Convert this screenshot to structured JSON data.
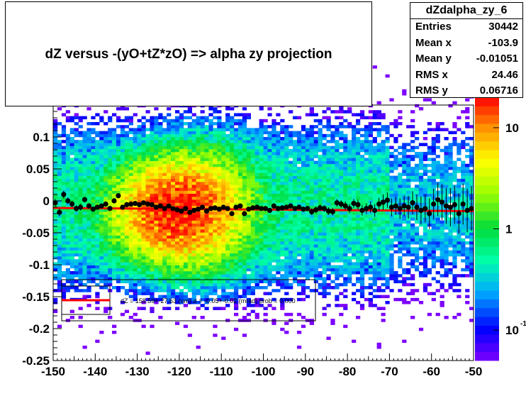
{
  "title": "dZ  versus -(yO+tZ*zO) =>  alpha zy projection",
  "stats": {
    "name": "dZdalpha_zy_6",
    "rows": [
      {
        "label": "Entries",
        "value": "30442"
      },
      {
        "label": "Mean x",
        "value": "-103.9"
      },
      {
        "label": "Mean y",
        "value": "-0.01051"
      },
      {
        "label": "RMS x",
        "value": "24.46"
      },
      {
        "label": "RMS y",
        "value": "0.06716"
      }
    ]
  },
  "palette_labels": [
    {
      "text": "10",
      "exp": ""
    },
    {
      "text": "1",
      "exp": ""
    },
    {
      "text": "10",
      "exp": "-1"
    }
  ],
  "legend_text": "dZ = 158.59+-27.63 (um) α = -0.05+-0.02 (mrad) prob = 0.000",
  "chart_data": {
    "type": "heatmap",
    "title": "dZ  versus -(yO+tZ*zO) =>  alpha zy projection",
    "xlabel": "",
    "ylabel": "",
    "xlim": [
      -150,
      -50
    ],
    "ylim": [
      -0.25,
      0.15
    ],
    "xticks": [
      -150,
      -140,
      -130,
      -120,
      -110,
      -100,
      -90,
      -80,
      -70,
      -60,
      -50
    ],
    "yticks": [
      -0.25,
      -0.2,
      -0.15,
      -0.1,
      -0.05,
      0,
      0.05,
      0.1
    ],
    "ytick_labels": [
      "-0.25",
      "-0.2",
      "-0.15",
      "-0.1",
      "-0.05",
      "0",
      "0.05",
      "0.1"
    ],
    "color_scale": "log",
    "z_range": [
      0.05,
      20
    ],
    "density_peak": {
      "x": -121,
      "y": -0.015
    },
    "profile": {
      "x": [
        -149.5,
        -148.5,
        -147.5,
        -146.5,
        -145.5,
        -144.5,
        -143.5,
        -142.5,
        -141.5,
        -140.5,
        -139.5,
        -138.5,
        -137.5,
        -136.5,
        -135.5,
        -134.5,
        -133.5,
        -132.5,
        -131.5,
        -130.5,
        -129.5,
        -128.5,
        -127.5,
        -126.5,
        -125.5,
        -124.5,
        -123.5,
        -122.5,
        -121.5,
        -120.5,
        -119.5,
        -118.5,
        -117.5,
        -116.5,
        -115.5,
        -114.5,
        -113.5,
        -112.5,
        -111.5,
        -110.5,
        -109.5,
        -108.5,
        -107.5,
        -106.5,
        -105.5,
        -104.5,
        -103.5,
        -102.5,
        -101.5,
        -100.5,
        -99.5,
        -98.5,
        -97.5,
        -96.5,
        -95.5,
        -94.5,
        -93.5,
        -92.5,
        -91.5,
        -90.5,
        -89.5,
        -88.5,
        -87.5,
        -86.5,
        -85.5,
        -84.5,
        -83.5,
        -82.5,
        -81.5,
        -80.5,
        -79.5,
        -78.5,
        -77.5,
        -76.5,
        -75.5,
        -74.5,
        -73.5,
        -72.5,
        -71.5,
        -70.5,
        -69.5,
        -68.5,
        -67.5,
        -66.5,
        -65.5,
        -64.5,
        -63.5,
        -62.5,
        -61.5,
        -60.5,
        -59.5,
        -58.5,
        -57.5,
        -56.5,
        -55.5,
        -54.5,
        -53.5,
        -52.5,
        -51.5,
        -50.5
      ],
      "y": [
        -0.003,
        -0.018,
        0.01,
        0.0,
        -0.005,
        -0.012,
        -0.01,
        0.002,
        -0.008,
        -0.013,
        -0.01,
        -0.008,
        -0.005,
        -0.012,
        0.0,
        0.008,
        -0.01,
        -0.006,
        -0.005,
        -0.004,
        -0.006,
        -0.003,
        -0.005,
        -0.006,
        -0.01,
        -0.008,
        -0.012,
        -0.008,
        -0.012,
        -0.014,
        -0.016,
        -0.012,
        -0.018,
        -0.015,
        -0.013,
        -0.01,
        -0.016,
        -0.012,
        -0.011,
        -0.013,
        -0.01,
        -0.012,
        -0.02,
        -0.01,
        -0.008,
        -0.02,
        -0.013,
        -0.011,
        -0.01,
        -0.012,
        -0.012,
        -0.015,
        -0.008,
        -0.012,
        -0.011,
        -0.01,
        -0.008,
        -0.012,
        -0.01,
        -0.013,
        -0.012,
        -0.017,
        -0.014,
        -0.011,
        -0.012,
        -0.016,
        -0.017,
        -0.003,
        -0.005,
        -0.008,
        -0.012,
        -0.004,
        -0.006,
        -0.015,
        -0.012,
        -0.01,
        -0.015,
        -0.005,
        -0.002,
        0.001,
        -0.01,
        -0.008,
        -0.012,
        -0.008,
        -0.01,
        -0.003,
        -0.01,
        -0.015,
        -0.012,
        -0.02,
        -0.005,
        0.002,
        -0.002,
        -0.008,
        -0.01,
        -0.006,
        -0.02,
        -0.005,
        -0.015,
        -0.012
      ],
      "yerr": [
        0.006,
        0.006,
        0.006,
        0.005,
        0.005,
        0.005,
        0.005,
        0.004,
        0.004,
        0.004,
        0.004,
        0.004,
        0.004,
        0.004,
        0.004,
        0.004,
        0.004,
        0.004,
        0.003,
        0.003,
        0.003,
        0.003,
        0.003,
        0.003,
        0.003,
        0.003,
        0.003,
        0.003,
        0.003,
        0.003,
        0.003,
        0.003,
        0.003,
        0.003,
        0.003,
        0.003,
        0.003,
        0.003,
        0.003,
        0.003,
        0.003,
        0.003,
        0.003,
        0.003,
        0.003,
        0.003,
        0.003,
        0.003,
        0.003,
        0.003,
        0.003,
        0.004,
        0.004,
        0.004,
        0.004,
        0.004,
        0.004,
        0.004,
        0.004,
        0.004,
        0.004,
        0.005,
        0.005,
        0.005,
        0.005,
        0.006,
        0.006,
        0.006,
        0.006,
        0.007,
        0.007,
        0.007,
        0.008,
        0.008,
        0.008,
        0.009,
        0.01,
        0.01,
        0.012,
        0.012,
        0.014,
        0.014,
        0.016,
        0.016,
        0.018,
        0.018,
        0.02,
        0.022,
        0.022,
        0.024,
        0.024,
        0.026,
        0.028,
        0.028,
        0.03,
        0.03,
        0.032,
        0.032,
        0.034,
        0.035
      ]
    },
    "fit": {
      "x": [
        -150,
        -50
      ],
      "y": [
        -0.0111,
        -0.0161
      ],
      "color": "#ff0000"
    },
    "colors": {
      "marker": "#000000",
      "fit_line": "#ff0000"
    }
  }
}
